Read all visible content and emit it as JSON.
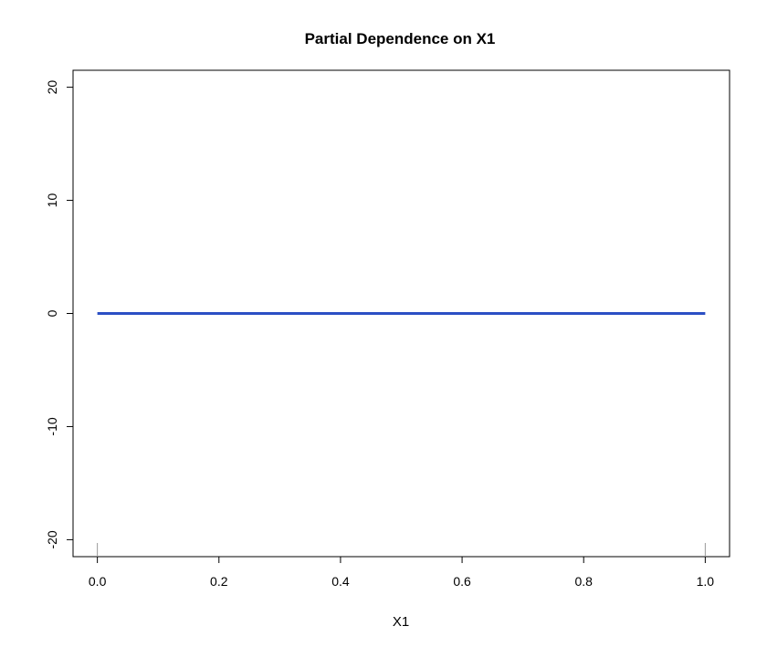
{
  "chart_data": {
    "type": "line",
    "title": "Partial Dependence on X1",
    "xlabel": "X1",
    "ylabel": "",
    "xlim": [
      -0.04,
      1.04
    ],
    "ylim": [
      -21.5,
      21.5
    ],
    "x_ticks": [
      "0.0",
      "0.2",
      "0.4",
      "0.6",
      "0.8",
      "1.0"
    ],
    "y_ticks": [
      "-20",
      "-10",
      "0",
      "10",
      "20"
    ],
    "series": [
      {
        "color": "#2b4fc4",
        "x": [
          0.0,
          1.0
        ],
        "y": [
          0.0,
          0.0
        ]
      }
    ],
    "rug_x": [
      0.0,
      1.0
    ],
    "grid": false,
    "legend": "none"
  }
}
